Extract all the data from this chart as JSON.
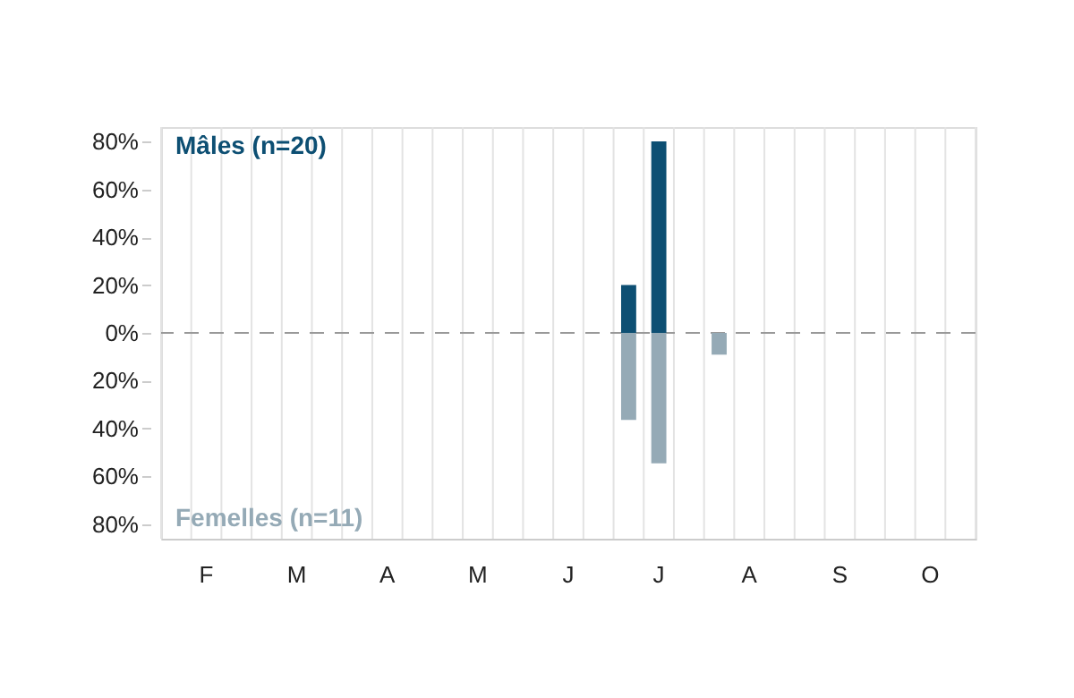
{
  "chart_data": {
    "type": "bar",
    "categories": [
      null,
      "F",
      null,
      null,
      "M",
      null,
      null,
      "A",
      null,
      null,
      "M",
      null,
      null,
      "J",
      null,
      null,
      "J",
      null,
      null,
      "A",
      null,
      null,
      "S",
      null,
      null,
      "O",
      null
    ],
    "series": [
      {
        "name": "Mâles (n=20)",
        "color": "#0d4f73",
        "values": [
          null,
          null,
          null,
          null,
          null,
          null,
          null,
          null,
          null,
          null,
          null,
          null,
          null,
          null,
          null,
          20,
          80,
          null,
          null,
          null,
          null,
          null,
          null,
          null,
          null,
          null,
          null
        ]
      },
      {
        "name": "Femelles (n=11)",
        "color": "#95aab6",
        "values": [
          null,
          null,
          null,
          null,
          null,
          null,
          null,
          null,
          null,
          null,
          null,
          null,
          null,
          null,
          null,
          -36.4,
          -54.5,
          null,
          -9.1,
          null,
          null,
          null,
          null,
          null,
          null,
          null,
          null
        ]
      }
    ],
    "ylim": [
      -86,
      86
    ],
    "yticks": [
      {
        "value": 80,
        "label": "80%"
      },
      {
        "value": 60,
        "label": "60%"
      },
      {
        "value": 40,
        "label": "40%"
      },
      {
        "value": 20,
        "label": "20%"
      },
      {
        "value": 0,
        "label": "0%"
      },
      {
        "value": -20,
        "label": "20%"
      },
      {
        "value": -40,
        "label": "40%"
      },
      {
        "value": -60,
        "label": "60%"
      },
      {
        "value": -80,
        "label": "80%"
      }
    ],
    "grid": "x",
    "legend": "left",
    "ref_lines": [
      {
        "axis": "y",
        "value": 0,
        "color": "#999999",
        "line_style": "dashed"
      }
    ]
  }
}
